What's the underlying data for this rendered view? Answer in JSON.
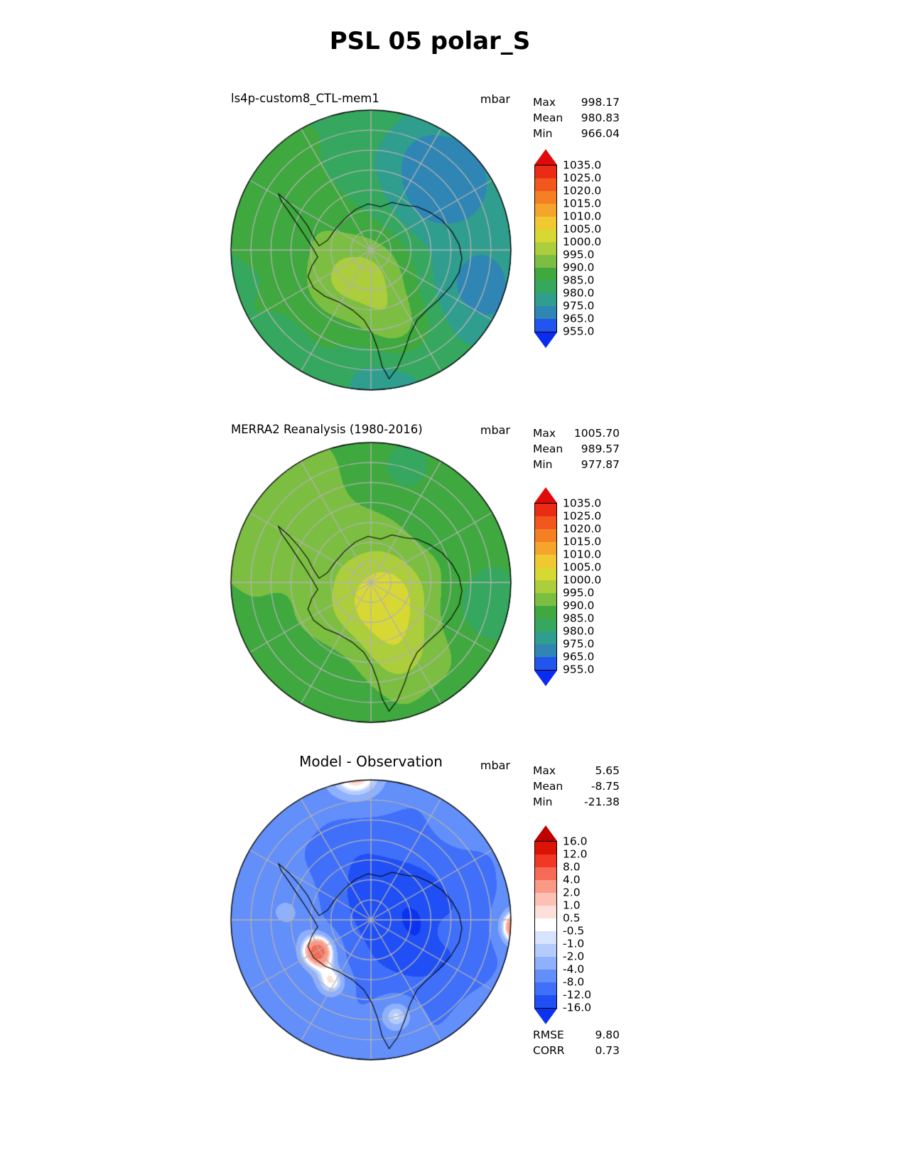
{
  "page_title": "PSL 05 polar_S",
  "chart_data": [
    {
      "type": "heatmap",
      "variant": "filled-contour-polar-map",
      "projection": "south polar stereographic",
      "region": "Antarctica / Southern Ocean",
      "title": "ls4p-custom8_CTL-mem1",
      "units": "mbar",
      "stats": {
        "max": 998.17,
        "mean": 980.83,
        "min": 966.04
      },
      "stats_display": [
        {
          "label": "Max",
          "value": "998.17"
        },
        {
          "label": "Mean",
          "value": "980.83"
        },
        {
          "label": "Min",
          "value": "966.04"
        }
      ],
      "levels": [
        955,
        965,
        975,
        980,
        985,
        990,
        995,
        1000,
        1005,
        1010,
        1015,
        1020,
        1025,
        1035
      ],
      "level_labels": [
        "1035.0",
        "1025.0",
        "1020.0",
        "1015.0",
        "1010.0",
        "1005.0",
        "1000.0",
        "995.0",
        "990.0",
        "985.0",
        "980.0",
        "975.0",
        "965.0",
        "955.0"
      ],
      "colors": [
        "#0a2cf0",
        "#2255f0",
        "#2f86b4",
        "#2f9e8f",
        "#35a75f",
        "#3fa83f",
        "#7cbe42",
        "#accd3c",
        "#d8d835",
        "#f0c832",
        "#f5a52b",
        "#f57f23",
        "#f2571e",
        "#ea2c14",
        "#e00a0a"
      ],
      "colorbar_position": "right",
      "field_approx": {
        "base": 984,
        "noise": 0.7,
        "blobs": [
          {
            "a": 13,
            "x": -0.1,
            "y": 0.18,
            "s": 0.38
          },
          {
            "a": 8,
            "x": 0.18,
            "y": 0.55,
            "s": 0.28
          },
          {
            "a": -14,
            "x": 0.5,
            "y": -0.52,
            "s": 0.45
          },
          {
            "a": -11,
            "x": 0.78,
            "y": 0.3,
            "s": 0.38
          },
          {
            "a": -7,
            "x": 0.1,
            "y": 0.9,
            "s": 0.35
          },
          {
            "a": 4,
            "x": -0.65,
            "y": -0.35,
            "s": 0.4
          }
        ]
      }
    },
    {
      "type": "heatmap",
      "variant": "filled-contour-polar-map",
      "projection": "south polar stereographic",
      "region": "Antarctica / Southern Ocean",
      "title": "MERRA2 Reanalysis (1980-2016)",
      "units": "mbar",
      "stats": {
        "max": 1005.7,
        "mean": 989.57,
        "min": 977.87
      },
      "stats_display": [
        {
          "label": "Max",
          "value": "1005.70"
        },
        {
          "label": "Mean",
          "value": "989.57"
        },
        {
          "label": "Min",
          "value": "977.87"
        }
      ],
      "levels": [
        955,
        965,
        975,
        980,
        985,
        990,
        995,
        1000,
        1005,
        1010,
        1015,
        1020,
        1025,
        1035
      ],
      "level_labels": [
        "1035.0",
        "1025.0",
        "1020.0",
        "1015.0",
        "1010.0",
        "1005.0",
        "1000.0",
        "995.0",
        "990.0",
        "985.0",
        "980.0",
        "975.0",
        "965.0",
        "955.0"
      ],
      "colors": [
        "#0a2cf0",
        "#2255f0",
        "#2f86b4",
        "#2f9e8f",
        "#35a75f",
        "#3fa83f",
        "#7cbe42",
        "#accd3c",
        "#d8d835",
        "#f0c832",
        "#f5a52b",
        "#f57f23",
        "#f2571e",
        "#ea2c14",
        "#e00a0a"
      ],
      "colorbar_position": "right",
      "field_approx": {
        "base": 989,
        "noise": 0.7,
        "blobs": [
          {
            "a": 14,
            "x": 0.08,
            "y": 0.12,
            "s": 0.34
          },
          {
            "a": 6,
            "x": 0.2,
            "y": 0.5,
            "s": 0.3
          },
          {
            "a": 5,
            "x": -0.5,
            "y": -0.45,
            "s": 0.5
          },
          {
            "a": -7,
            "x": 0.85,
            "y": 0.15,
            "s": 0.35
          },
          {
            "a": -5,
            "x": 0.2,
            "y": -0.85,
            "s": 0.35
          },
          {
            "a": -4,
            "x": -0.3,
            "y": 0.85,
            "s": 0.35
          }
        ]
      }
    },
    {
      "type": "heatmap",
      "variant": "filled-contour-polar-map",
      "projection": "south polar stereographic",
      "region": "Antarctica / Southern Ocean",
      "title": "Model - Observation",
      "units": "mbar",
      "stats": {
        "max": 5.65,
        "mean": -8.75,
        "min": -21.38
      },
      "stats_display": [
        {
          "label": "Max",
          "value": "5.65"
        },
        {
          "label": "Mean",
          "value": "-8.75"
        },
        {
          "label": "Min",
          "value": "-21.38"
        }
      ],
      "rmse": 9.8,
      "corr": 0.73,
      "extra_stats_display": [
        {
          "label": "RMSE",
          "value": "9.80"
        },
        {
          "label": "CORR",
          "value": "0.73"
        }
      ],
      "levels": [
        -16,
        -12,
        -8,
        -4,
        -2,
        -1,
        -0.5,
        0.5,
        1,
        2,
        4,
        8,
        12,
        16
      ],
      "level_labels": [
        "16.0",
        "12.0",
        "8.0",
        "4.0",
        "2.0",
        "1.0",
        "0.5",
        "-0.5",
        "-1.0",
        "-2.0",
        "-4.0",
        "-8.0",
        "-12.0",
        "-16.0"
      ],
      "colors": [
        "#0a32f0",
        "#2050f5",
        "#4070fa",
        "#638ffa",
        "#8fb0fc",
        "#b4ccfd",
        "#d8e4fe",
        "#ffffff",
        "#fde0da",
        "#fcc0b4",
        "#fa9a86",
        "#f76a55",
        "#f03824",
        "#dc1405",
        "#c00000"
      ],
      "colorbar_position": "right",
      "field_approx": {
        "base": -7,
        "noise": 0.4,
        "blobs": [
          {
            "a": -9,
            "x": 0.3,
            "y": 0.05,
            "s": 0.45
          },
          {
            "a": -4,
            "x": -0.05,
            "y": -0.4,
            "s": 0.35
          },
          {
            "a": 13,
            "x": -0.38,
            "y": 0.22,
            "s": 0.13
          },
          {
            "a": 8,
            "x": -0.28,
            "y": 0.44,
            "s": 0.12
          },
          {
            "a": 14,
            "x": 1.05,
            "y": 0.05,
            "s": 0.14
          },
          {
            "a": 9,
            "x": -0.12,
            "y": -1.05,
            "s": 0.22
          },
          {
            "a": 7,
            "x": 0.18,
            "y": 0.68,
            "s": 0.13
          },
          {
            "a": 5,
            "x": 0.55,
            "y": 0.08,
            "s": 0.1
          },
          {
            "a": 4,
            "x": -0.6,
            "y": -0.05,
            "s": 0.18
          }
        ]
      }
    }
  ]
}
